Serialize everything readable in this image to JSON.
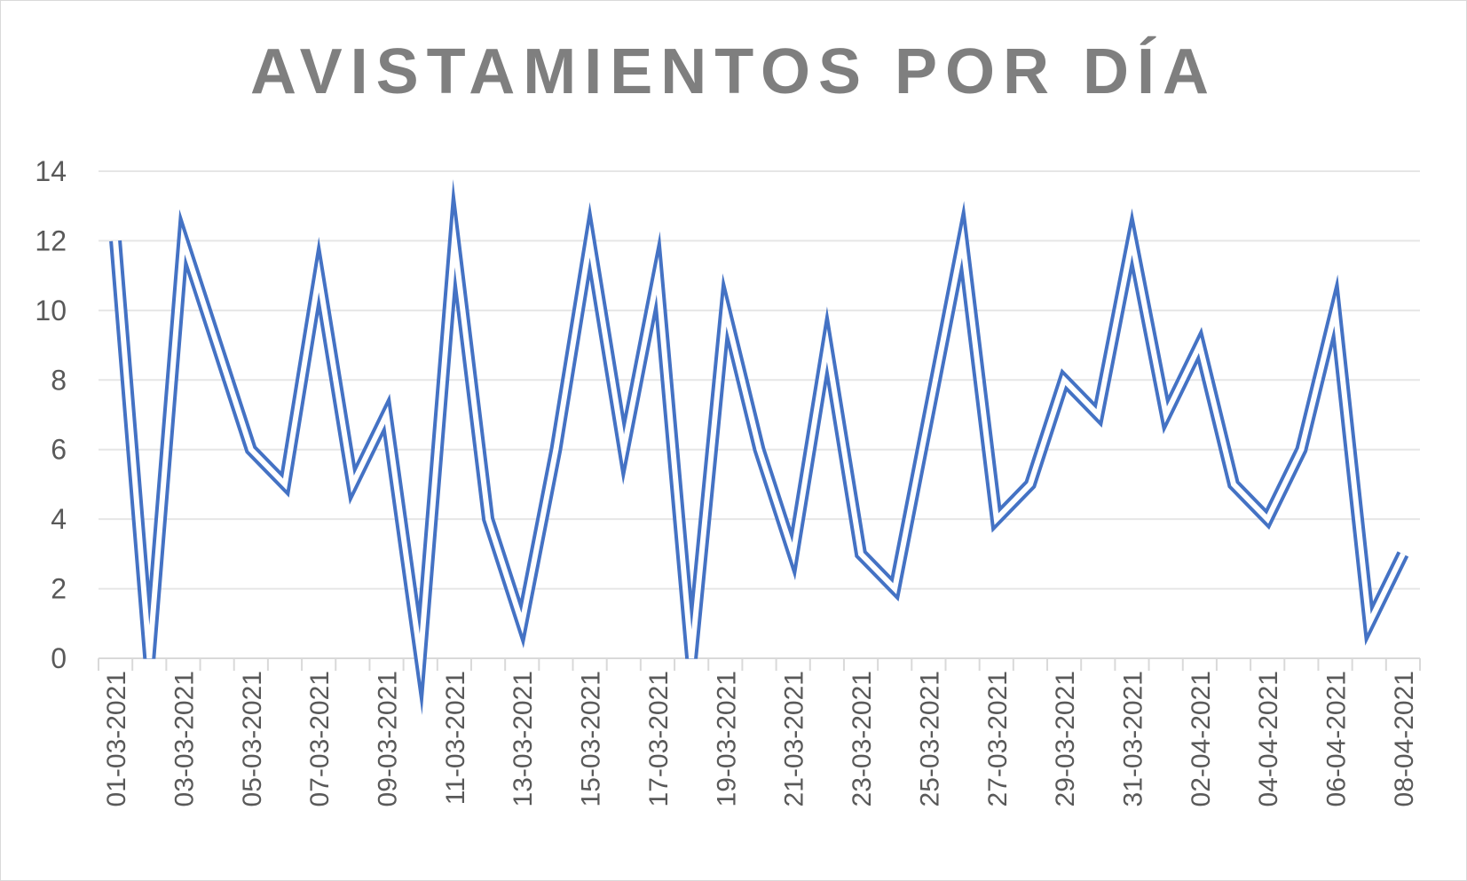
{
  "chart_data": {
    "type": "line",
    "title": "AVISTAMIENTOS POR DÍA",
    "xlabel": "",
    "ylabel": "",
    "ylim": [
      0,
      14
    ],
    "yticks": [
      0,
      2,
      4,
      6,
      8,
      10,
      12,
      14
    ],
    "grid": true,
    "legend": "none",
    "series_color": "#4472c4",
    "x": [
      "01-03-2021",
      "02-03-2021",
      "03-03-2021",
      "04-03-2021",
      "05-03-2021",
      "06-03-2021",
      "07-03-2021",
      "08-03-2021",
      "09-03-2021",
      "10-03-2021",
      "11-03-2021",
      "12-03-2021",
      "13-03-2021",
      "14-03-2021",
      "15-03-2021",
      "16-03-2021",
      "17-03-2021",
      "18-03-2021",
      "19-03-2021",
      "20-03-2021",
      "21-03-2021",
      "22-03-2021",
      "23-03-2021",
      "24-03-2021",
      "25-03-2021",
      "26-03-2021",
      "27-03-2021",
      "28-03-2021",
      "29-03-2021",
      "30-03-2021",
      "31-03-2021",
      "01-04-2021",
      "02-04-2021",
      "03-04-2021",
      "04-04-2021",
      "05-04-2021",
      "06-04-2021",
      "07-04-2021",
      "08-04-2021"
    ],
    "x_tick_labels": [
      "01-03-2021",
      "03-03-2021",
      "05-03-2021",
      "07-03-2021",
      "09-03-2021",
      "11-03-2021",
      "13-03-2021",
      "15-03-2021",
      "17-03-2021",
      "19-03-2021",
      "21-03-2021",
      "23-03-2021",
      "25-03-2021",
      "27-03-2021",
      "29-03-2021",
      "31-03-2021",
      "02-04-2021",
      "04-04-2021",
      "06-04-2021",
      "08-04-2021"
    ],
    "series": [
      {
        "values": [
          12,
          0,
          12,
          9,
          6,
          5,
          11,
          5,
          7,
          0,
          12,
          4,
          1,
          6,
          12,
          6,
          11,
          0,
          10,
          6,
          3,
          9,
          3,
          2,
          7,
          12,
          4,
          5,
          8,
          7,
          12,
          7,
          9,
          5,
          4,
          6,
          10,
          1,
          3
        ]
      }
    ]
  }
}
